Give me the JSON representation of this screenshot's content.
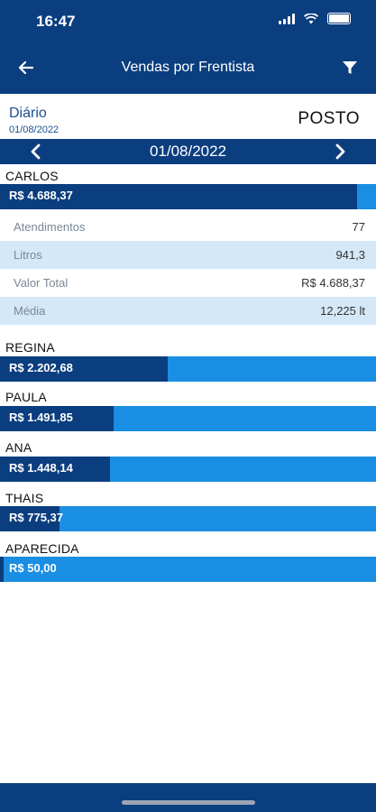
{
  "status": {
    "time": "16:47"
  },
  "header": {
    "title": "Vendas por Frentista"
  },
  "period": {
    "label": "Diário",
    "date": "01/08/2022",
    "station": "POSTO"
  },
  "datebar": {
    "date": "01/08/2022"
  },
  "detail": {
    "rows": [
      {
        "label": "Atendimentos",
        "value": "77"
      },
      {
        "label": "Litros",
        "value": "941,3"
      },
      {
        "label": "Valor Total",
        "value": "R$ 4.688,37"
      },
      {
        "label": "Média",
        "value": "12,225 lt"
      }
    ]
  },
  "attendants": [
    {
      "name": "CARLOS",
      "amount": "R$ 4.688,37",
      "share": 0.95
    },
    {
      "name": "REGINA",
      "amount": "R$ 2.202,68",
      "share": 0.447
    },
    {
      "name": "PAULA",
      "amount": "R$ 1.491,85",
      "share": 0.302
    },
    {
      "name": "ANA",
      "amount": "R$ 1.448,14",
      "share": 0.292
    },
    {
      "name": "THAIS",
      "amount": "R$ 775,37",
      "share": 0.158
    },
    {
      "name": "APARECIDA",
      "amount": "R$ 50,00",
      "share": 0.01
    }
  ],
  "colors": {
    "primary": "#0b3e7f",
    "accent": "#1a8ee2",
    "row_alt": "#d5e8f8"
  },
  "icons": {
    "back": "arrow-left-icon",
    "filter": "filter-icon",
    "prev": "chevron-left-icon",
    "next": "chevron-right-icon"
  }
}
